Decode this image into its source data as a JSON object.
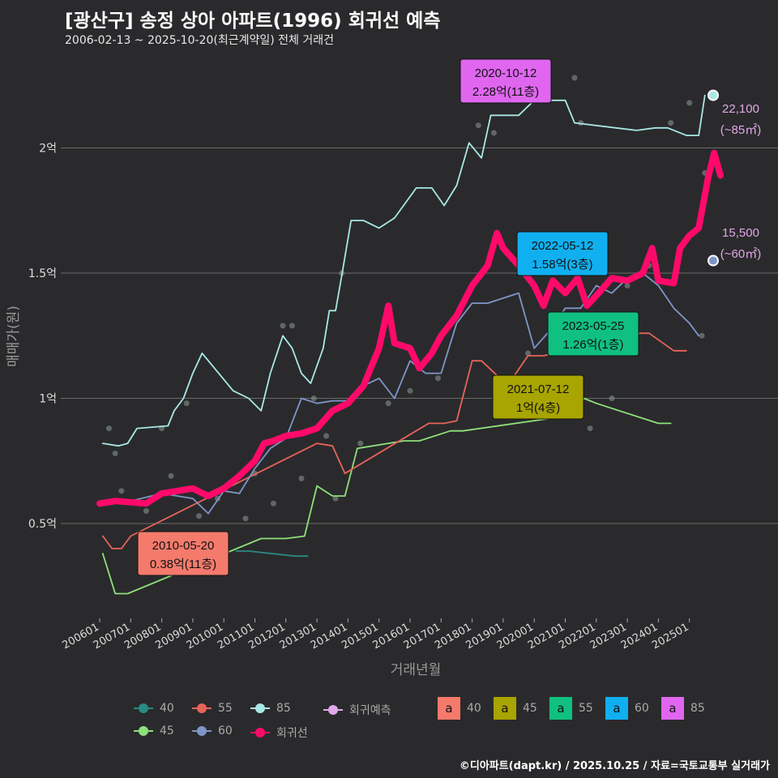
{
  "title": "[광산구] 송정 상아 아파트(1996) 회귀선 예측",
  "subtitle": "2006-02-13 ~ 2025-10-20(최근계약일) 전체 거래건",
  "footer": "©디아파트(dapt.kr) / 2025.10.25 / 자료=국토교통부 실거래가",
  "colors": {
    "40": "#2a8a84",
    "45": "#8ee07a",
    "55": "#e8645a",
    "60": "#7f95c8",
    "85": "#a8e8e4",
    "regression": "#ff0a6a",
    "forecast": "#e0a8e8"
  },
  "chart_data": {
    "type": "line",
    "xlabel": "거래년월",
    "ylabel": "매매가(원)",
    "xlim": [
      2005.8,
      2026.3
    ],
    "ylim": [
      0.2,
      2.4
    ],
    "x_ticks": [
      "200601",
      "200701",
      "200801",
      "200901",
      "201001",
      "201101",
      "201201",
      "201301",
      "201401",
      "201501",
      "201601",
      "201701",
      "201801",
      "201901",
      "202001",
      "202101",
      "202201",
      "202301",
      "202401",
      "202501"
    ],
    "y_ticks": [
      {
        "v": 0.5,
        "label": "0.5억"
      },
      {
        "v": 1,
        "label": "1억"
      },
      {
        "v": 1.5,
        "label": "1.5억"
      },
      {
        "v": 2,
        "label": "2억"
      }
    ],
    "series": [
      {
        "name": "회귀선",
        "key": "regression",
        "x": [
          2006.0,
          2006.5,
          2007.5,
          2008,
          2009,
          2009.5,
          2010,
          2010.5,
          2011,
          2011.3,
          2011.6,
          2012,
          2012.5,
          2013,
          2013.5,
          2014,
          2014.5,
          2015,
          2015.3,
          2015.5,
          2016,
          2016.3,
          2016.7,
          2017,
          2017.5,
          2018,
          2018.5,
          2018.8,
          2019,
          2019.5,
          2020,
          2020.3,
          2020.6,
          2021,
          2021.4,
          2021.7,
          2022,
          2022.5,
          2023,
          2023.5,
          2023.8,
          2024,
          2024.5,
          2024.7,
          2025,
          2025.3,
          2025.6,
          2025.8,
          2026.0
        ],
        "y": [
          0.58,
          0.59,
          0.58,
          0.62,
          0.64,
          0.61,
          0.64,
          0.69,
          0.75,
          0.82,
          0.83,
          0.85,
          0.86,
          0.88,
          0.95,
          0.98,
          1.05,
          1.2,
          1.37,
          1.22,
          1.2,
          1.12,
          1.18,
          1.25,
          1.33,
          1.45,
          1.53,
          1.66,
          1.6,
          1.53,
          1.45,
          1.37,
          1.47,
          1.42,
          1.48,
          1.37,
          1.41,
          1.48,
          1.47,
          1.5,
          1.6,
          1.47,
          1.46,
          1.6,
          1.65,
          1.68,
          1.88,
          1.98,
          1.89
        ]
      },
      {
        "name": "85",
        "key": "85",
        "x": [
          2006.1,
          2006.6,
          2006.9,
          2007.2,
          2008.2,
          2008.4,
          2008.7,
          2009.0,
          2009.3,
          2010.3,
          2010.8,
          2011.2,
          2011.5,
          2011.9,
          2012.2,
          2012.5,
          2012.8,
          2013.2,
          2013.4,
          2013.6,
          2013.8,
          2014.1,
          2014.5,
          2015.0,
          2015.5,
          2016.2,
          2016.7,
          2017.1,
          2017.5,
          2017.9,
          2018.3,
          2018.6,
          2019.0,
          2019.5,
          2020.0,
          2020.5,
          2021.0,
          2021.3,
          2023.3,
          2023.9,
          2024.3,
          2024.9,
          2025.3,
          2025.5
        ],
        "y": [
          0.82,
          0.81,
          0.82,
          0.88,
          0.89,
          0.95,
          1.0,
          1.1,
          1.18,
          1.03,
          1.0,
          0.95,
          1.1,
          1.25,
          1.2,
          1.1,
          1.06,
          1.2,
          1.35,
          1.35,
          1.49,
          1.71,
          1.71,
          1.68,
          1.72,
          1.84,
          1.84,
          1.77,
          1.85,
          2.02,
          1.96,
          2.13,
          2.13,
          2.13,
          2.19,
          2.19,
          2.19,
          2.1,
          2.07,
          2.08,
          2.08,
          2.05,
          2.05,
          2.21
        ]
      },
      {
        "name": "60",
        "key": "60",
        "x": [
          2006.0,
          2007.0,
          2008.0,
          2009.0,
          2009.5,
          2010.0,
          2010.5,
          2011.0,
          2011.5,
          2012.0,
          2012.5,
          2013.0,
          2013.5,
          2014.0,
          2014.5,
          2015.0,
          2015.5,
          2016.0,
          2016.5,
          2017.0,
          2017.5,
          2018.0,
          2018.5,
          2019.0,
          2019.5,
          2020.0,
          2020.5,
          2021.0,
          2021.5,
          2022.0,
          2022.5,
          2023.0,
          2023.5,
          2024.0,
          2024.5,
          2025.0,
          2025.3
        ],
        "y": [
          0.57,
          0.59,
          0.62,
          0.6,
          0.54,
          0.63,
          0.62,
          0.72,
          0.8,
          0.84,
          1.0,
          0.98,
          0.99,
          0.99,
          1.05,
          1.08,
          1.0,
          1.15,
          1.1,
          1.1,
          1.3,
          1.38,
          1.38,
          1.4,
          1.42,
          1.2,
          1.27,
          1.36,
          1.36,
          1.45,
          1.42,
          1.48,
          1.5,
          1.45,
          1.36,
          1.3,
          1.25
        ]
      },
      {
        "name": "55",
        "key": "55",
        "x": [
          2006.1,
          2006.4,
          2006.7,
          2007.0,
          2013.0,
          2013.5,
          2013.9,
          2016.6,
          2017.1,
          2017.5,
          2018.0,
          2018.3,
          2018.9,
          2019.3,
          2019.8,
          2020.3,
          2023.4,
          2023.7,
          2024.5,
          2024.9
        ],
        "y": [
          0.45,
          0.4,
          0.4,
          0.45,
          0.82,
          0.81,
          0.7,
          0.9,
          0.9,
          0.91,
          1.15,
          1.15,
          1.08,
          1.08,
          1.17,
          1.17,
          1.26,
          1.26,
          1.19,
          1.19
        ]
      },
      {
        "name": "45",
        "key": "45",
        "x": [
          2006.1,
          2006.3,
          2006.5,
          2006.9,
          2011.2,
          2011.6,
          2012.0,
          2012.6,
          2013.0,
          2013.5,
          2013.9,
          2014.3,
          2015.8,
          2016.3,
          2017.3,
          2017.7,
          2021.1,
          2021.4,
          2021.6,
          2022.0,
          2024.0,
          2024.4
        ],
        "y": [
          0.38,
          0.3,
          0.22,
          0.22,
          0.44,
          0.44,
          0.44,
          0.45,
          0.65,
          0.61,
          0.61,
          0.8,
          0.83,
          0.83,
          0.87,
          0.87,
          0.93,
          0.93,
          1.0,
          0.98,
          0.9,
          0.9
        ]
      },
      {
        "name": "40",
        "key": "40",
        "x": [
          2010.4,
          2010.8,
          2012.3,
          2012.7
        ],
        "y": [
          0.39,
          0.39,
          0.37,
          0.37
        ]
      }
    ],
    "points": [
      [
        2006.3,
        0.88
      ],
      [
        2006.5,
        0.78
      ],
      [
        2006.7,
        0.63
      ],
      [
        2007.5,
        0.55
      ],
      [
        2008.0,
        0.88
      ],
      [
        2008.3,
        0.69
      ],
      [
        2008.8,
        0.98
      ],
      [
        2009.2,
        0.53
      ],
      [
        2009.8,
        0.6
      ],
      [
        2010.3,
        0.67
      ],
      [
        2010.7,
        0.52
      ],
      [
        2011.0,
        0.7
      ],
      [
        2011.6,
        0.58
      ],
      [
        2011.9,
        1.29
      ],
      [
        2012.2,
        1.29
      ],
      [
        2012.5,
        0.68
      ],
      [
        2012.9,
        1.0
      ],
      [
        2013.3,
        0.85
      ],
      [
        2013.6,
        0.6
      ],
      [
        2013.8,
        1.5
      ],
      [
        2014.4,
        0.82
      ],
      [
        2015.3,
        0.98
      ],
      [
        2016.0,
        1.03
      ],
      [
        2016.9,
        1.08
      ],
      [
        2018.2,
        2.09
      ],
      [
        2018.7,
        2.06
      ],
      [
        2019.8,
        1.18
      ],
      [
        2020.8,
        1.21
      ],
      [
        2021.3,
        2.28
      ],
      [
        2021.5,
        2.1
      ],
      [
        2021.8,
        0.88
      ],
      [
        2022.5,
        1.0
      ],
      [
        2023.0,
        1.45
      ],
      [
        2023.7,
        1.53
      ],
      [
        2024.4,
        2.1
      ],
      [
        2025.0,
        2.18
      ],
      [
        2025.4,
        1.25
      ],
      [
        2025.5,
        1.9
      ]
    ],
    "forecast": [
      {
        "label": "22,100",
        "sub": "(~85㎡)",
        "v": 2.21,
        "key": "85"
      },
      {
        "label": "15,500",
        "sub": "(~60㎡)",
        "v": 1.55,
        "key": "60"
      }
    ],
    "annotations": [
      {
        "date": "2020-10-12",
        "text": "2.28억(11층)",
        "color": "#e066f0",
        "key": "85"
      },
      {
        "date": "2022-05-12",
        "text": "1.58억(3층)",
        "color": "#10b0f0",
        "key": "60"
      },
      {
        "date": "2023-05-25",
        "text": "1.26억(1층)",
        "color": "#10c080",
        "key": "55"
      },
      {
        "date": "2021-07-12",
        "text": "1억(4층)",
        "color": "#a8a400",
        "key": "45"
      },
      {
        "date": "2010-05-20",
        "text": "0.38억(11층)",
        "color": "#f47a6c",
        "key": "40"
      }
    ]
  },
  "legend": {
    "lines": [
      {
        "label": "40",
        "key": "40"
      },
      {
        "label": "55",
        "key": "55"
      },
      {
        "label": "85",
        "key": "85"
      },
      {
        "label": "회귀예측",
        "key": "forecast"
      },
      {
        "label": "45",
        "key": "45"
      },
      {
        "label": "60",
        "key": "60"
      },
      {
        "label": "회귀선",
        "key": "regression"
      }
    ],
    "boxes": [
      {
        "label": "40",
        "color": "#f47a6c"
      },
      {
        "label": "45",
        "color": "#a8a400"
      },
      {
        "label": "55",
        "color": "#10c080"
      },
      {
        "label": "60",
        "color": "#10b0f0"
      },
      {
        "label": "85",
        "color": "#e066f0"
      }
    ],
    "box_glyph": "a"
  }
}
